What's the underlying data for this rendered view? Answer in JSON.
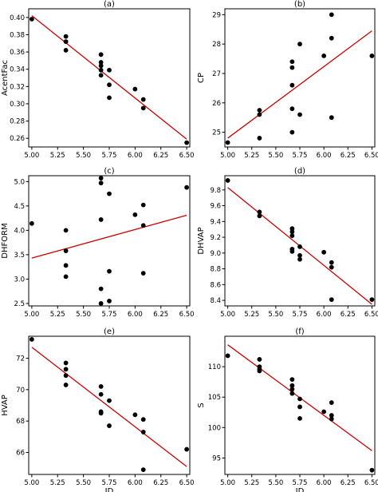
{
  "chart_data": [
    {
      "type": "scatter",
      "title": "(a)",
      "xlabel": "",
      "ylabel": "AcentFac",
      "xlim": [
        4.97,
        6.53
      ],
      "ylim": [
        0.25,
        0.41
      ],
      "xticks": [
        "5.00",
        "5.25",
        "5.50",
        "5.75",
        "6.00",
        "6.25",
        "6.50"
      ],
      "yticks": [
        "0.26",
        "0.28",
        "0.30",
        "0.32",
        "0.34",
        "0.36",
        "0.38",
        "0.40"
      ],
      "x": [
        5.0,
        5.33,
        5.33,
        5.33,
        5.67,
        5.67,
        5.67,
        5.67,
        5.67,
        5.75,
        5.75,
        5.75,
        6.0,
        6.08,
        6.08,
        6.5
      ],
      "y": [
        0.398,
        0.378,
        0.372,
        0.362,
        0.357,
        0.348,
        0.344,
        0.339,
        0.333,
        0.339,
        0.322,
        0.307,
        0.317,
        0.305,
        0.295,
        0.255
      ],
      "fit": [
        [
          5.0,
          0.402
        ],
        [
          6.5,
          0.259
        ]
      ],
      "fit_color": "#cc0000",
      "point_color": "#000000"
    },
    {
      "type": "scatter",
      "title": "(b)",
      "xlabel": "",
      "ylabel": "CP",
      "xlim": [
        4.97,
        6.53
      ],
      "ylim": [
        24.5,
        29.2
      ],
      "xticks": [
        "5.00",
        "5.25",
        "5.50",
        "5.75",
        "6.00",
        "6.25",
        "6.50"
      ],
      "yticks": [
        "25",
        "26",
        "27",
        "28",
        "29"
      ],
      "x": [
        5.0,
        5.33,
        5.33,
        5.33,
        5.67,
        5.67,
        5.67,
        5.67,
        5.67,
        5.75,
        5.75,
        6.0,
        6.08,
        6.08,
        6.08,
        6.5
      ],
      "y": [
        24.65,
        25.75,
        25.6,
        24.8,
        27.4,
        26.6,
        25.8,
        25.0,
        27.2,
        28.0,
        25.6,
        27.6,
        29.0,
        28.2,
        25.5,
        27.6
      ],
      "fit": [
        [
          5.0,
          24.8
        ],
        [
          6.5,
          28.45
        ]
      ],
      "fit_color": "#cc0000",
      "point_color": "#000000"
    },
    {
      "type": "scatter",
      "title": "(c)",
      "xlabel": "",
      "ylabel": "DHFORM",
      "xlim": [
        4.97,
        6.53
      ],
      "ylim": [
        2.45,
        5.12
      ],
      "xticks": [
        "5.00",
        "5.25",
        "5.50",
        "5.75",
        "6.00",
        "6.25",
        "6.50"
      ],
      "yticks": [
        "2.5",
        "3.0",
        "3.5",
        "4.0",
        "4.5",
        "5.0"
      ],
      "x": [
        5.0,
        5.33,
        5.33,
        5.33,
        5.33,
        5.67,
        5.67,
        5.67,
        5.67,
        5.67,
        5.75,
        5.75,
        5.75,
        6.0,
        6.08,
        6.08,
        6.08,
        6.5
      ],
      "y": [
        4.14,
        4.0,
        3.58,
        3.28,
        3.05,
        5.07,
        4.97,
        4.22,
        2.8,
        2.5,
        4.75,
        3.16,
        2.55,
        4.32,
        4.52,
        4.1,
        3.12,
        4.88
      ],
      "fit": [
        [
          5.0,
          3.43
        ],
        [
          6.5,
          4.31
        ]
      ],
      "fit_color": "#cc0000",
      "point_color": "#000000"
    },
    {
      "type": "scatter",
      "title": "(d)",
      "xlabel": "",
      "ylabel": "DHVAP",
      "xlim": [
        4.97,
        6.53
      ],
      "ylim": [
        8.33,
        9.98
      ],
      "xticks": [
        "5.00",
        "5.25",
        "5.50",
        "5.75",
        "6.00",
        "6.25",
        "6.50"
      ],
      "yticks": [
        "8.4",
        "8.6",
        "8.8",
        "9.0",
        "9.2",
        "9.4",
        "9.6",
        "9.8"
      ],
      "x": [
        5.0,
        5.33,
        5.33,
        5.67,
        5.67,
        5.67,
        5.67,
        5.67,
        5.75,
        5.75,
        5.75,
        6.0,
        6.08,
        6.08,
        6.08,
        6.5
      ],
      "y": [
        9.92,
        9.52,
        9.47,
        9.31,
        9.27,
        9.22,
        9.05,
        9.02,
        9.08,
        8.97,
        8.92,
        9.01,
        8.88,
        8.82,
        8.41,
        8.41
      ],
      "fit": [
        [
          5.0,
          9.83
        ],
        [
          6.5,
          8.35
        ]
      ],
      "fit_color": "#cc0000",
      "point_color": "#000000"
    },
    {
      "type": "scatter",
      "title": "(e)",
      "xlabel": "ID",
      "ylabel": "HVAP",
      "xlim": [
        4.97,
        6.53
      ],
      "ylim": [
        64.6,
        73.4
      ],
      "xticks": [
        "5.00",
        "5.25",
        "5.50",
        "5.75",
        "6.00",
        "6.25",
        "6.50"
      ],
      "yticks": [
        "66",
        "68",
        "70",
        "72"
      ],
      "x": [
        5.0,
        5.33,
        5.33,
        5.33,
        5.33,
        5.67,
        5.67,
        5.67,
        5.67,
        5.75,
        5.75,
        6.0,
        6.08,
        6.08,
        6.08,
        6.5
      ],
      "y": [
        73.2,
        71.7,
        71.3,
        70.9,
        70.3,
        70.2,
        69.7,
        68.6,
        68.5,
        69.3,
        67.7,
        68.4,
        68.1,
        67.3,
        64.9,
        66.2
      ],
      "fit": [
        [
          5.0,
          72.7
        ],
        [
          6.5,
          65.1
        ]
      ],
      "fit_color": "#cc0000",
      "point_color": "#000000"
    },
    {
      "type": "scatter",
      "title": "(f)",
      "xlabel": "ID",
      "ylabel": "S",
      "xlim": [
        4.97,
        6.53
      ],
      "ylim": [
        92.3,
        115.0
      ],
      "xticks": [
        "5.00",
        "5.25",
        "5.50",
        "5.75",
        "6.00",
        "6.25",
        "6.50"
      ],
      "yticks": [
        "95",
        "100",
        "105",
        "110"
      ],
      "x": [
        5.0,
        5.33,
        5.33,
        5.33,
        5.33,
        5.67,
        5.67,
        5.67,
        5.67,
        5.75,
        5.75,
        5.75,
        6.0,
        6.08,
        6.08,
        6.08,
        6.5
      ],
      "y": [
        111.8,
        111.2,
        110.0,
        109.6,
        109.3,
        107.9,
        106.9,
        106.3,
        105.6,
        104.7,
        103.4,
        101.5,
        102.6,
        104.1,
        102.0,
        101.4,
        93.0
      ],
      "fit": [
        [
          5.0,
          113.6
        ],
        [
          6.5,
          96.2
        ]
      ],
      "fit_color": "#cc0000",
      "point_color": "#000000"
    }
  ]
}
